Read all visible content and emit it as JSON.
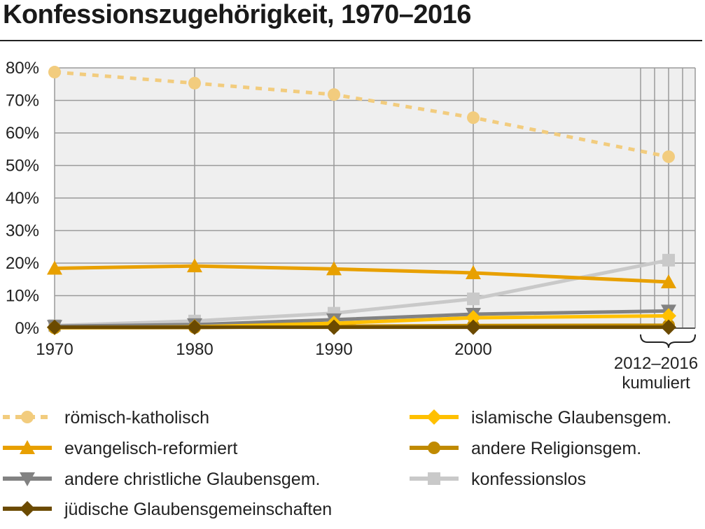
{
  "chart_data": {
    "type": "line",
    "title": "Konfessionszugehörigkeit, 1970–2016",
    "x": [
      "1970",
      "1980",
      "1990",
      "2000",
      "2012–2016"
    ],
    "x_note": "kumuliert",
    "ylim": [
      0,
      80
    ],
    "y_ticks": [
      "0%",
      "10%",
      "20%",
      "30%",
      "40%",
      "50%",
      "60%",
      "70%",
      "80%"
    ],
    "grid": true,
    "legend_position": "bottom",
    "series": [
      {
        "name": "römisch-katholisch",
        "values": [
          78.7,
          75.3,
          71.8,
          64.7,
          52.7
        ],
        "color": "#f2cc7e",
        "dashed": true,
        "marker": "circle"
      },
      {
        "name": "evangelisch-reformiert",
        "values": [
          18.4,
          19.1,
          18.2,
          17.0,
          14.2
        ],
        "color": "#e8a000",
        "dashed": false,
        "marker": "triangle-up"
      },
      {
        "name": "andere christliche Glaubensgem.",
        "values": [
          0.6,
          1.1,
          2.6,
          4.3,
          5.3
        ],
        "color": "#828282",
        "dashed": false,
        "marker": "triangle-down"
      },
      {
        "name": "jüdische Glaubensgemeinschaften",
        "values": [
          0.3,
          0.3,
          0.3,
          0.3,
          0.3
        ],
        "color": "#6b4a00",
        "dashed": false,
        "marker": "diamond"
      },
      {
        "name": "islamische Glaubensgem.",
        "values": [
          0.2,
          0.4,
          1.5,
          3.2,
          3.8
        ],
        "color": "#ffc000",
        "dashed": false,
        "marker": "diamond"
      },
      {
        "name": "andere Religionsgem.",
        "values": [
          0.1,
          0.2,
          0.6,
          0.8,
          0.9
        ],
        "color": "#c08a00",
        "dashed": false,
        "marker": "circle"
      },
      {
        "name": "konfessionslos",
        "values": [
          0.8,
          2.2,
          4.6,
          9.0,
          20.9
        ],
        "color": "#c9c9c9",
        "dashed": false,
        "marker": "square"
      }
    ],
    "legend_order": [
      0,
      4,
      1,
      5,
      2,
      6,
      3
    ]
  }
}
